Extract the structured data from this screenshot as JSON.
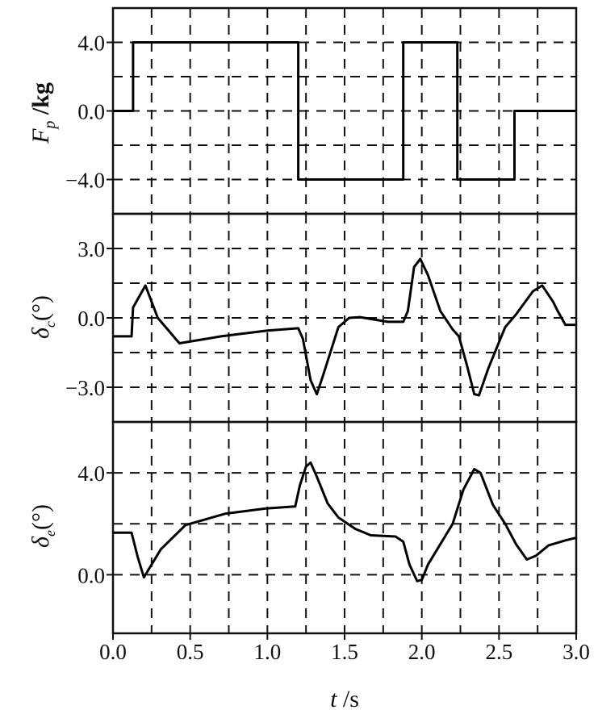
{
  "chart_data": [
    {
      "type": "line",
      "ylabel": {
        "main": "F",
        "sub": "p",
        "rest": " /kg"
      },
      "ylim": [
        -6,
        6
      ],
      "yticks": [
        4.0,
        0.0,
        -4.0
      ],
      "ytick_labels": [
        "4.0",
        "0.0",
        "−4.0"
      ],
      "ygrid": [
        -4,
        -2,
        0,
        2,
        4
      ],
      "grid": true,
      "series": [
        {
          "x": [
            0,
            0.13,
            0.13,
            1.2,
            1.2,
            1.88,
            1.88,
            2.23,
            2.23,
            2.6,
            2.6,
            3.0
          ],
          "y": [
            0,
            0,
            4,
            4,
            -4,
            -4,
            4,
            4,
            -4,
            -4,
            0,
            0
          ]
        }
      ]
    },
    {
      "type": "line",
      "ylabel": {
        "main": "δ",
        "sub": "c",
        "rest": "(°)"
      },
      "ylim": [
        -4.5,
        4.5
      ],
      "yticks": [
        3.0,
        0.0,
        -3.0
      ],
      "ytick_labels": [
        "3.0",
        "0.0",
        "−3.0"
      ],
      "ygrid": [
        -3,
        -1.5,
        0,
        1.5,
        3
      ],
      "grid": true,
      "series": [
        {
          "x": [
            0,
            0.12,
            0.13,
            0.21,
            0.29,
            0.43,
            0.7,
            1.0,
            1.2,
            1.23,
            1.28,
            1.32,
            1.36,
            1.46,
            1.53,
            1.6,
            1.78,
            1.88,
            1.91,
            1.95,
            1.99,
            2.04,
            2.12,
            2.2,
            2.24,
            2.29,
            2.34,
            2.37,
            2.43,
            2.54,
            2.61,
            2.72,
            2.78,
            2.85,
            2.88,
            2.93,
            3.0
          ],
          "y": [
            -0.8,
            -0.8,
            0.45,
            1.4,
            0,
            -1.1,
            -0.8,
            -0.55,
            -0.45,
            -0.9,
            -2.7,
            -3.3,
            -2.5,
            -0.4,
            0,
            0.03,
            -0.17,
            -0.17,
            0.3,
            2.2,
            2.55,
            1.85,
            0.3,
            -0.5,
            -0.8,
            -2.0,
            -3.3,
            -3.35,
            -2.2,
            -0.4,
            0.15,
            1.15,
            1.4,
            0.7,
            0.3,
            -0.3,
            -0.3
          ]
        }
      ]
    },
    {
      "type": "line",
      "ylabel": {
        "main": "δ",
        "sub": "e",
        "rest": "(°)"
      },
      "xlabel": {
        "main": "t",
        "rest": " /s"
      },
      "xlim": [
        0,
        3.0
      ],
      "xticks": [
        0.0,
        0.5,
        1.0,
        1.5,
        2.0,
        2.5,
        3.0
      ],
      "xtick_labels": [
        "0.0",
        "0.5",
        "1.0",
        "1.5",
        "2.0",
        "2.5",
        "3.0"
      ],
      "ylim": [
        -2.3,
        6
      ],
      "yticks": [
        4.0,
        0.0
      ],
      "ytick_labels": [
        "4.0",
        "0.0"
      ],
      "ygrid": [
        0,
        2,
        4
      ],
      "grid": true,
      "series": [
        {
          "x": [
            0,
            0.12,
            0.16,
            0.2,
            0.31,
            0.47,
            0.73,
            0.99,
            1.18,
            1.21,
            1.25,
            1.28,
            1.32,
            1.39,
            1.46,
            1.57,
            1.67,
            1.83,
            1.88,
            1.92,
            1.97,
            2.0,
            2.04,
            2.2,
            2.27,
            2.34,
            2.38,
            2.46,
            2.54,
            2.61,
            2.68,
            2.74,
            2.82,
            2.93,
            3.0
          ],
          "y": [
            1.65,
            1.65,
            0.7,
            -0.1,
            1.0,
            1.95,
            2.4,
            2.6,
            2.68,
            3.5,
            4.25,
            4.4,
            3.85,
            2.8,
            2.25,
            1.8,
            1.55,
            1.5,
            1.3,
            0.4,
            -0.25,
            -0.2,
            0.4,
            2.0,
            3.35,
            4.15,
            4.0,
            2.75,
            2.0,
            1.2,
            0.6,
            0.75,
            1.15,
            1.35,
            1.45
          ]
        }
      ]
    }
  ],
  "xgrid_step": 0.25
}
